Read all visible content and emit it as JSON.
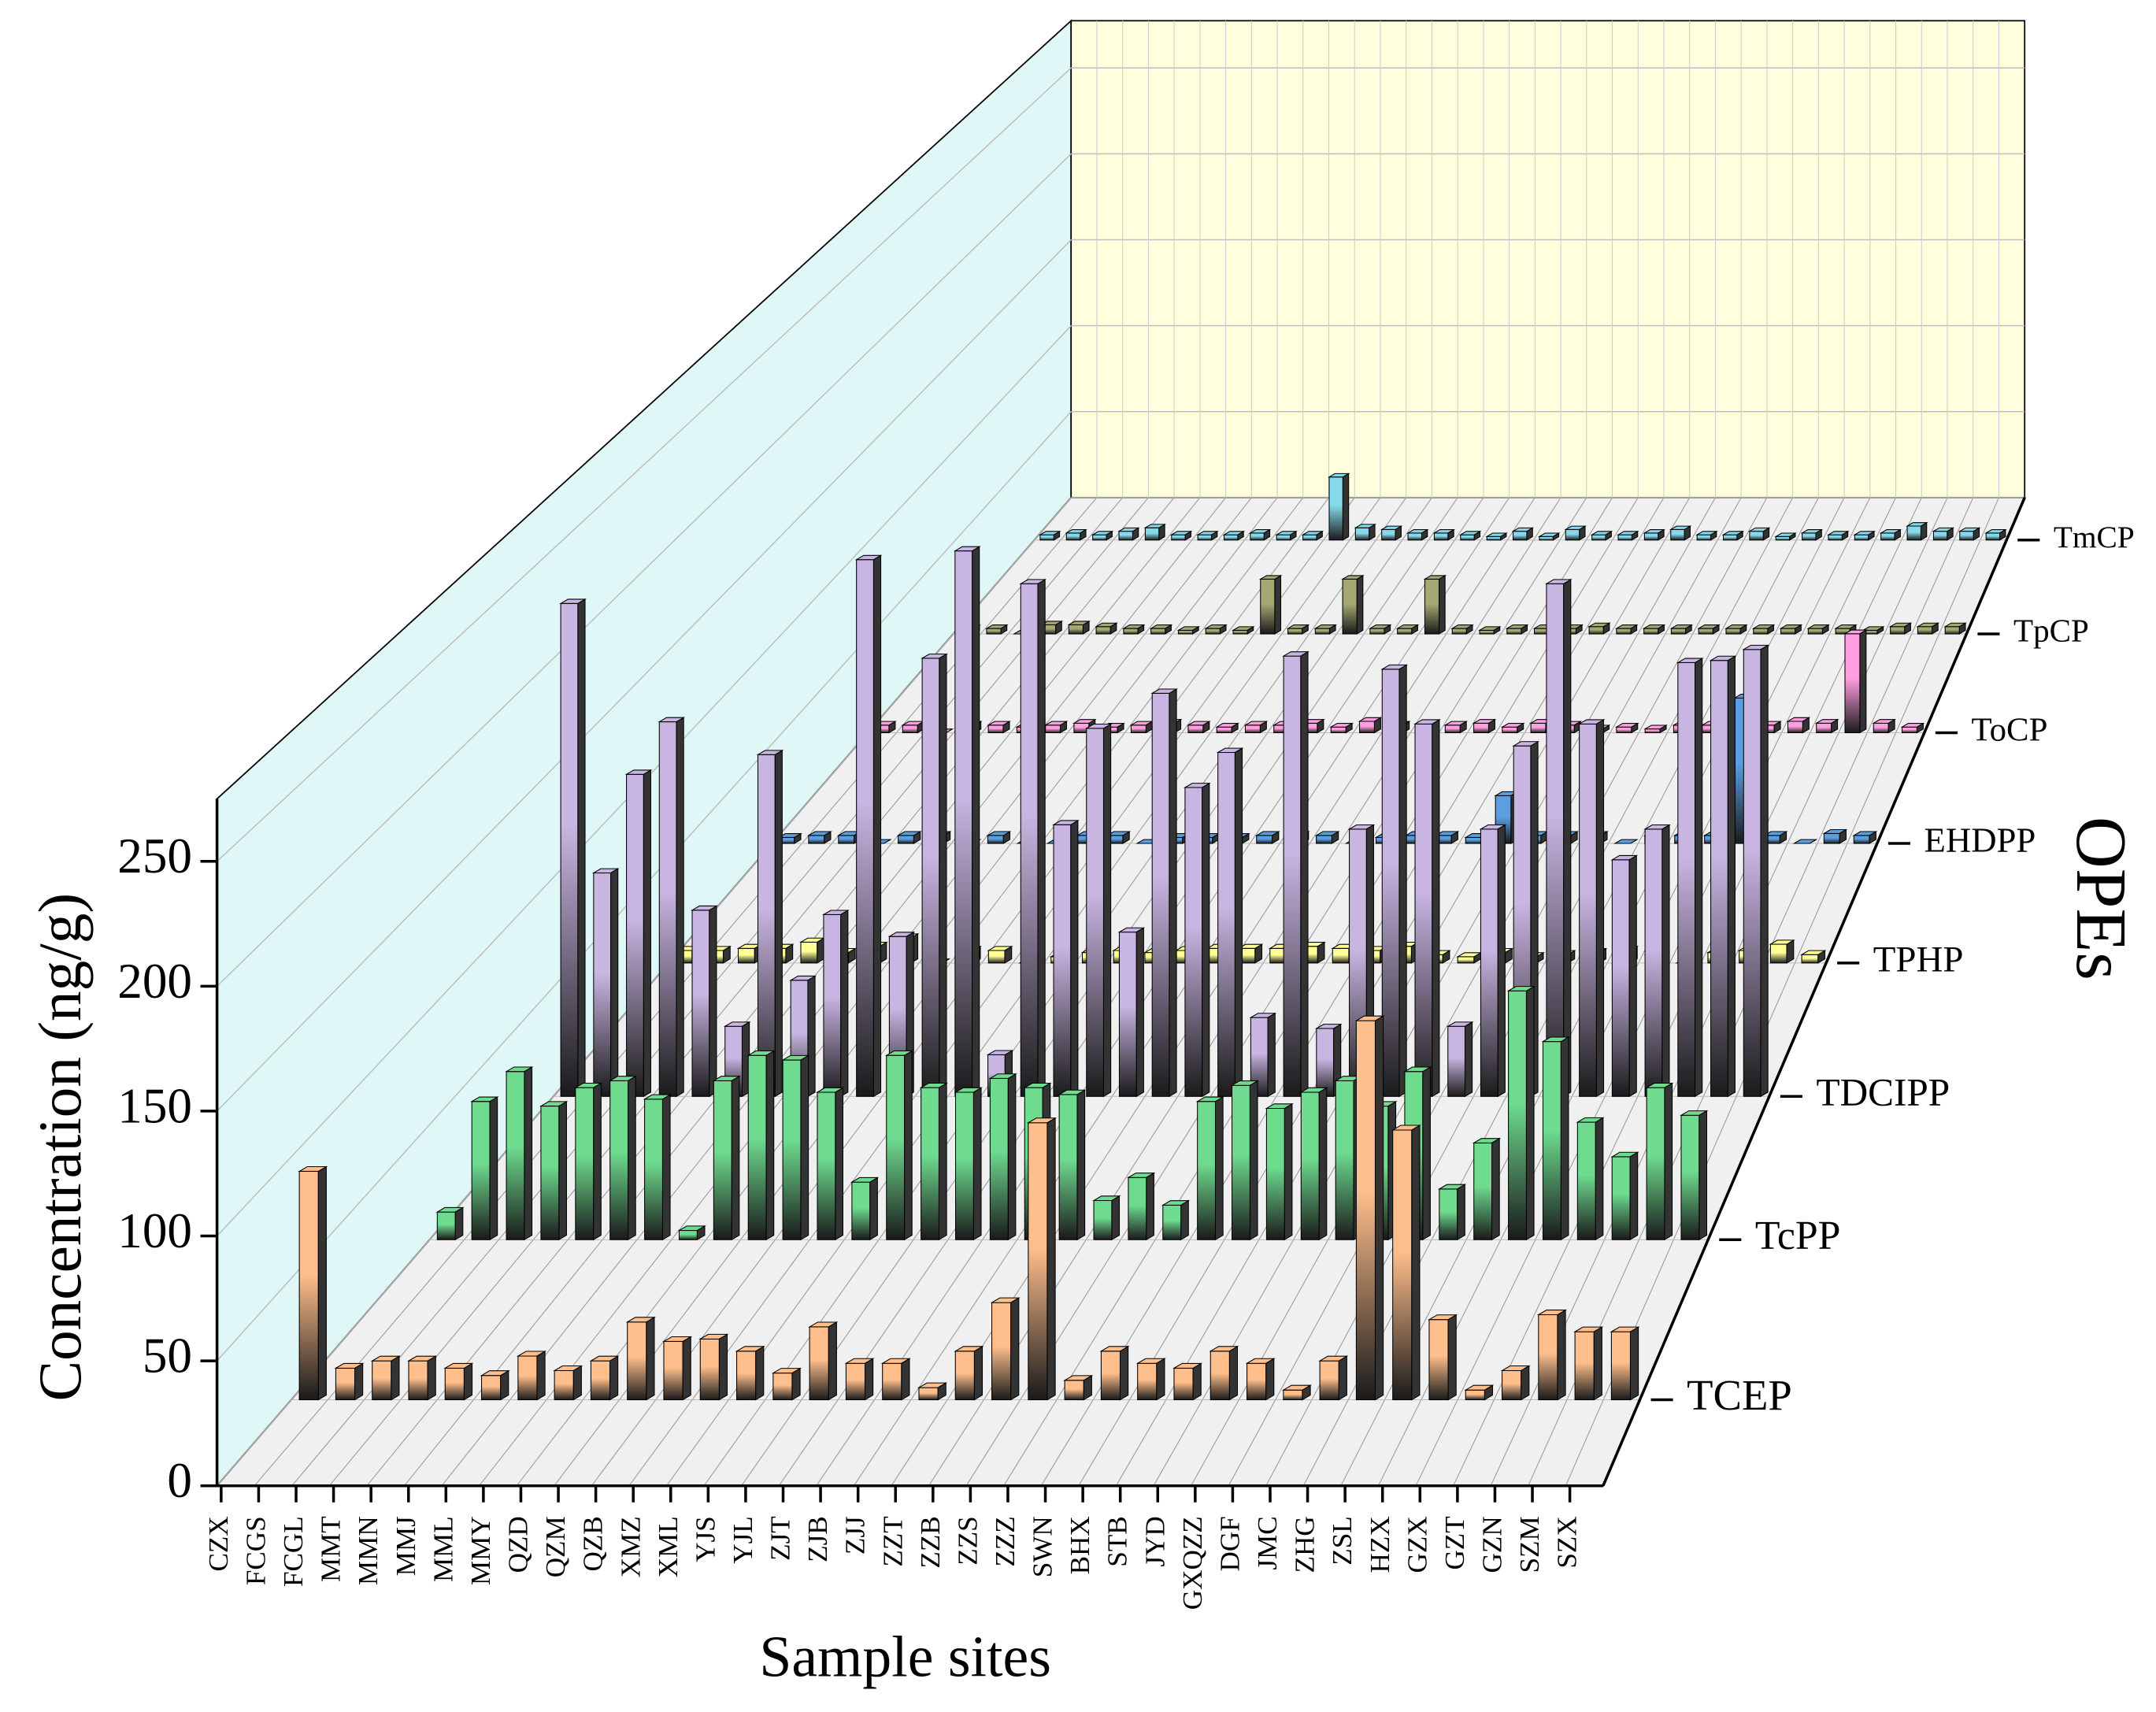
{
  "chart_data": {
    "type": "bar3d",
    "x_label": "Sample sites",
    "y_label": "Concentration (ng/g)",
    "z_label": "OPEs",
    "categories": [
      "CZX",
      "FCGS",
      "FCGL",
      "MMT",
      "MMN",
      "MMJ",
      "MML",
      "MMY",
      "QZD",
      "QZM",
      "QZB",
      "XMZ",
      "XML",
      "YJS",
      "YJL",
      "ZJT",
      "ZJB",
      "ZJJ",
      "ZZT",
      "ZZB",
      "ZZS",
      "ZZZ",
      "SWN",
      "BHX",
      "STB",
      "JYD",
      "GXQZZ",
      "DGF",
      "JMC",
      "ZHG",
      "ZSL",
      "HZX",
      "GZX",
      "GZT",
      "GZN",
      "SZM",
      "SZX"
    ],
    "series": [
      {
        "name": "TCEP",
        "color": "#ffbf8c",
        "values": [
          94,
          13,
          16,
          16,
          13,
          10,
          18,
          12,
          16,
          32,
          24,
          25,
          20,
          11,
          30,
          15,
          15,
          5,
          20,
          40,
          114,
          8,
          20,
          15,
          13,
          20,
          15,
          4,
          16,
          156,
          111,
          33,
          4,
          12,
          35,
          28,
          28
        ]
      },
      {
        "name": "TcPP",
        "color": "#6edb8f",
        "values": [
          12,
          60,
          73,
          58,
          66,
          69,
          61,
          4,
          69,
          80,
          78,
          64,
          25,
          80,
          66,
          64,
          70,
          66,
          63,
          17,
          27,
          15,
          60,
          67,
          57,
          64,
          69,
          58,
          73,
          22,
          42,
          108,
          86,
          51,
          36,
          66,
          54
        ]
      },
      {
        "name": "TDCIPP",
        "color": "#c9b5e2",
        "values": [
          225,
          102,
          147,
          171,
          85,
          32,
          156,
          53,
          83,
          245,
          73,
          200,
          249,
          19,
          234,
          124,
          168,
          75,
          184,
          141,
          157,
          36,
          201,
          31,
          122,
          195,
          170,
          32,
          122,
          160,
          234,
          170,
          108,
          122,
          198,
          199,
          204
        ]
      },
      {
        "name": "TPHP",
        "color": "#ffff96",
        "values": [
          6,
          6,
          7,
          7,
          10,
          5,
          8,
          12,
          0,
          6,
          6,
          0,
          3,
          5,
          6,
          5,
          6,
          7,
          7,
          7,
          8,
          7,
          6,
          8,
          4,
          3,
          5,
          3,
          4,
          5,
          6,
          4,
          0,
          5,
          6,
          9,
          4
        ]
      },
      {
        "name": "EHDPP",
        "color": "#5b9fe0",
        "values": [
          3,
          4,
          4,
          0,
          4,
          4,
          0,
          4,
          0,
          0,
          4,
          4,
          0,
          3,
          3,
          3,
          4,
          4,
          4,
          0,
          3,
          4,
          4,
          3,
          24,
          4,
          4,
          4,
          0,
          4,
          4,
          4,
          73,
          4,
          0,
          5,
          4
        ]
      },
      {
        "name": "ToCP",
        "color": "#ff9ee0",
        "values": [
          4,
          4,
          0,
          4,
          4,
          3,
          4,
          5,
          3,
          4,
          5,
          4,
          3,
          4,
          4,
          5,
          3,
          6,
          4,
          4,
          4,
          5,
          3,
          5,
          4,
          2,
          3,
          2,
          4,
          4,
          5,
          4,
          6,
          5,
          52,
          5,
          3
        ]
      },
      {
        "name": "TpCP",
        "color": "#a5a873",
        "values": [
          3,
          3,
          0,
          5,
          5,
          4,
          3,
          3,
          2,
          3,
          2,
          30,
          3,
          3,
          30,
          3,
          3,
          30,
          3,
          2,
          3,
          3,
          3,
          4,
          3,
          3,
          3,
          3,
          3,
          3,
          3,
          3,
          3,
          2,
          4,
          4,
          4
        ]
      },
      {
        "name": "TmCP",
        "color": "#86d9ea",
        "values": [
          3,
          4,
          3,
          5,
          7,
          3,
          3,
          3,
          4,
          3,
          3,
          36,
          7,
          6,
          4,
          4,
          3,
          2,
          5,
          2,
          6,
          3,
          3,
          4,
          6,
          3,
          3,
          5,
          2,
          4,
          3,
          3,
          4,
          8,
          5,
          5,
          4
        ]
      }
    ],
    "ylim": [
      0,
      275
    ],
    "yticks": [
      0,
      50,
      100,
      150,
      200,
      250
    ],
    "grid": true
  }
}
